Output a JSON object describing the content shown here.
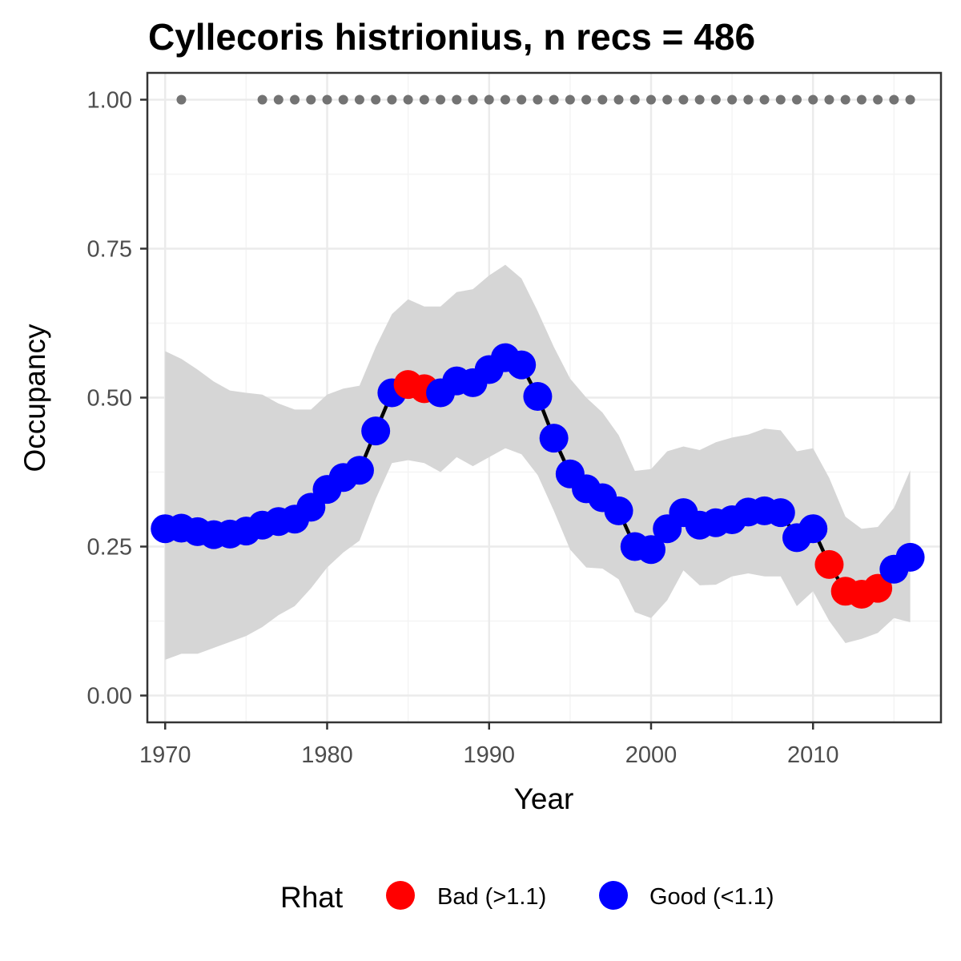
{
  "chart_data": {
    "type": "line",
    "title": "Cyllecoris histrionius, n recs = 486",
    "xlabel": "Year",
    "ylabel": "Occupancy",
    "xlim": [
      1968.9,
      2017.9
    ],
    "ylim": [
      -0.045,
      1.045
    ],
    "x_ticks": [
      1970,
      1980,
      1990,
      2000,
      2010
    ],
    "x_tick_labels": [
      "1970",
      "1980",
      "1990",
      "2000",
      "2010"
    ],
    "y_ticks": [
      0,
      0.25,
      0.5,
      0.75,
      1.0
    ],
    "y_tick_labels": [
      "0.00",
      "0.25",
      "0.50",
      "0.75",
      "1.00"
    ],
    "grid": true,
    "colors": {
      "bad": "#ff0000",
      "good": "#0000ff",
      "ribbon": "#d6d6d6",
      "line": "#000000",
      "record_dots": "#737373",
      "panel_border": "#333333",
      "grid_major": "#ebebeb",
      "grid_minor": "#f4f4f4"
    },
    "legend": {
      "title": "Rhat",
      "position": "bottom",
      "entries": [
        {
          "key": "bad",
          "label": "Bad (>1.1)"
        },
        {
          "key": "good",
          "label": "Good (<1.1)"
        }
      ]
    },
    "series": [
      {
        "x": [
          1970,
          1971,
          1972,
          1973,
          1974,
          1975,
          1976,
          1977,
          1978,
          1979,
          1980,
          1981,
          1982,
          1983,
          1984,
          1985,
          1986,
          1987,
          1988,
          1989,
          1990,
          1991,
          1992,
          1993,
          1994,
          1995,
          1996,
          1997,
          1998,
          1999,
          2000,
          2001,
          2002,
          2003,
          2004,
          2005,
          2006,
          2007,
          2008,
          2009,
          2010,
          2011,
          2012,
          2013,
          2014,
          2015,
          2016
        ],
        "values": [
          0.28,
          0.281,
          0.275,
          0.27,
          0.271,
          0.276,
          0.286,
          0.292,
          0.296,
          0.316,
          0.346,
          0.366,
          0.378,
          0.444,
          0.508,
          0.522,
          0.515,
          0.508,
          0.528,
          0.525,
          0.547,
          0.567,
          0.555,
          0.502,
          0.432,
          0.372,
          0.347,
          0.332,
          0.31,
          0.25,
          0.245,
          0.28,
          0.307,
          0.286,
          0.29,
          0.295,
          0.308,
          0.31,
          0.307,
          0.265,
          0.28,
          0.22,
          0.175,
          0.17,
          0.18,
          0.212,
          0.232
        ],
        "lower": [
          0.06,
          0.07,
          0.07,
          0.08,
          0.09,
          0.1,
          0.115,
          0.135,
          0.15,
          0.18,
          0.215,
          0.24,
          0.26,
          0.33,
          0.39,
          0.395,
          0.39,
          0.375,
          0.4,
          0.385,
          0.4,
          0.415,
          0.405,
          0.37,
          0.31,
          0.245,
          0.215,
          0.213,
          0.195,
          0.14,
          0.13,
          0.16,
          0.21,
          0.185,
          0.186,
          0.2,
          0.205,
          0.2,
          0.2,
          0.15,
          0.175,
          0.125,
          0.088,
          0.095,
          0.105,
          0.13,
          0.123
        ],
        "upper": [
          0.578,
          0.565,
          0.547,
          0.527,
          0.512,
          0.508,
          0.505,
          0.49,
          0.48,
          0.48,
          0.505,
          0.515,
          0.52,
          0.585,
          0.64,
          0.665,
          0.653,
          0.653,
          0.677,
          0.682,
          0.705,
          0.723,
          0.7,
          0.645,
          0.585,
          0.532,
          0.5,
          0.475,
          0.437,
          0.377,
          0.38,
          0.41,
          0.418,
          0.412,
          0.425,
          0.433,
          0.438,
          0.448,
          0.445,
          0.41,
          0.415,
          0.365,
          0.3,
          0.28,
          0.283,
          0.315,
          0.378
        ],
        "rhat": [
          "good",
          "good",
          "good",
          "good",
          "good",
          "good",
          "good",
          "good",
          "good",
          "good",
          "good",
          "good",
          "good",
          "good",
          "good",
          "bad",
          "bad",
          "good",
          "good",
          "good",
          "good",
          "good",
          "good",
          "good",
          "good",
          "good",
          "good",
          "good",
          "good",
          "good",
          "good",
          "good",
          "good",
          "good",
          "good",
          "good",
          "good",
          "good",
          "good",
          "good",
          "good",
          "bad",
          "bad",
          "bad",
          "bad",
          "good",
          "good"
        ]
      }
    ],
    "record_years": {
      "y": 1.0,
      "x": [
        1971,
        1976,
        1977,
        1978,
        1979,
        1980,
        1981,
        1982,
        1983,
        1984,
        1985,
        1986,
        1987,
        1988,
        1989,
        1990,
        1991,
        1992,
        1993,
        1994,
        1995,
        1996,
        1997,
        1998,
        1999,
        2000,
        2001,
        2002,
        2003,
        2004,
        2005,
        2006,
        2007,
        2008,
        2009,
        2010,
        2011,
        2012,
        2013,
        2014,
        2015,
        2016
      ]
    }
  }
}
